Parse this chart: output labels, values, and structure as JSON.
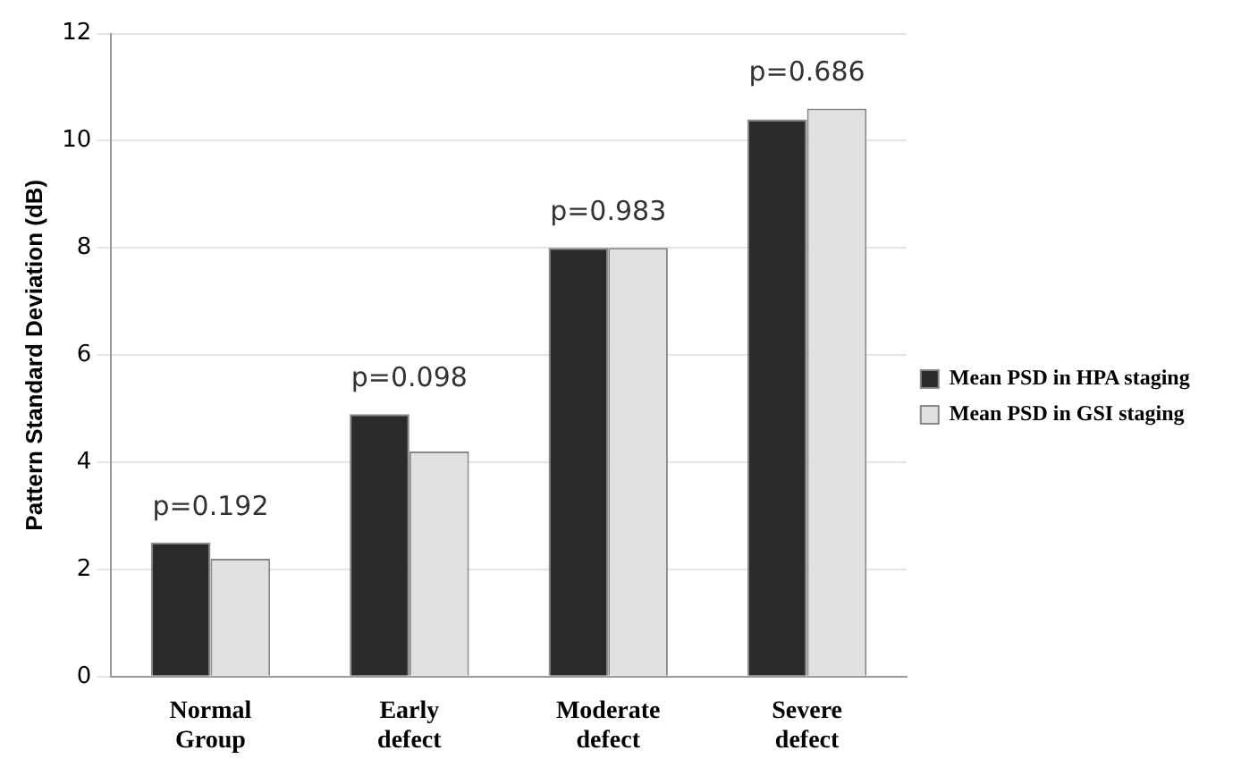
{
  "chart_data": {
    "type": "bar",
    "ylabel": "Pattern Standard Deviation (dB)",
    "categories": [
      "Normal Group",
      "Early defect",
      "Moderate defect",
      "Severe defect"
    ],
    "series": [
      {
        "name": "Mean PSD in HPA staging",
        "color": "#2b2b2b",
        "values": [
          2.5,
          4.9,
          8.0,
          10.4
        ]
      },
      {
        "name": "Mean PSD in GSI staging",
        "color": "#e0e0e0",
        "values": [
          2.2,
          4.2,
          8.0,
          10.6
        ]
      }
    ],
    "ylim": [
      0,
      12
    ],
    "yticks": [
      0,
      2,
      4,
      6,
      8,
      10,
      12
    ],
    "grid": "y",
    "legend": "right",
    "annotations": [
      {
        "text": "p=0.192",
        "x": "Normal Group",
        "y": 2.5
      },
      {
        "text": "p=0.098",
        "x": "Early defect",
        "y": 4.9
      },
      {
        "text": "p=0.983",
        "x": "Moderate defect",
        "y": 8.0
      },
      {
        "text": "p=0.686",
        "x": "Severe defect",
        "y": 10.6
      }
    ]
  }
}
